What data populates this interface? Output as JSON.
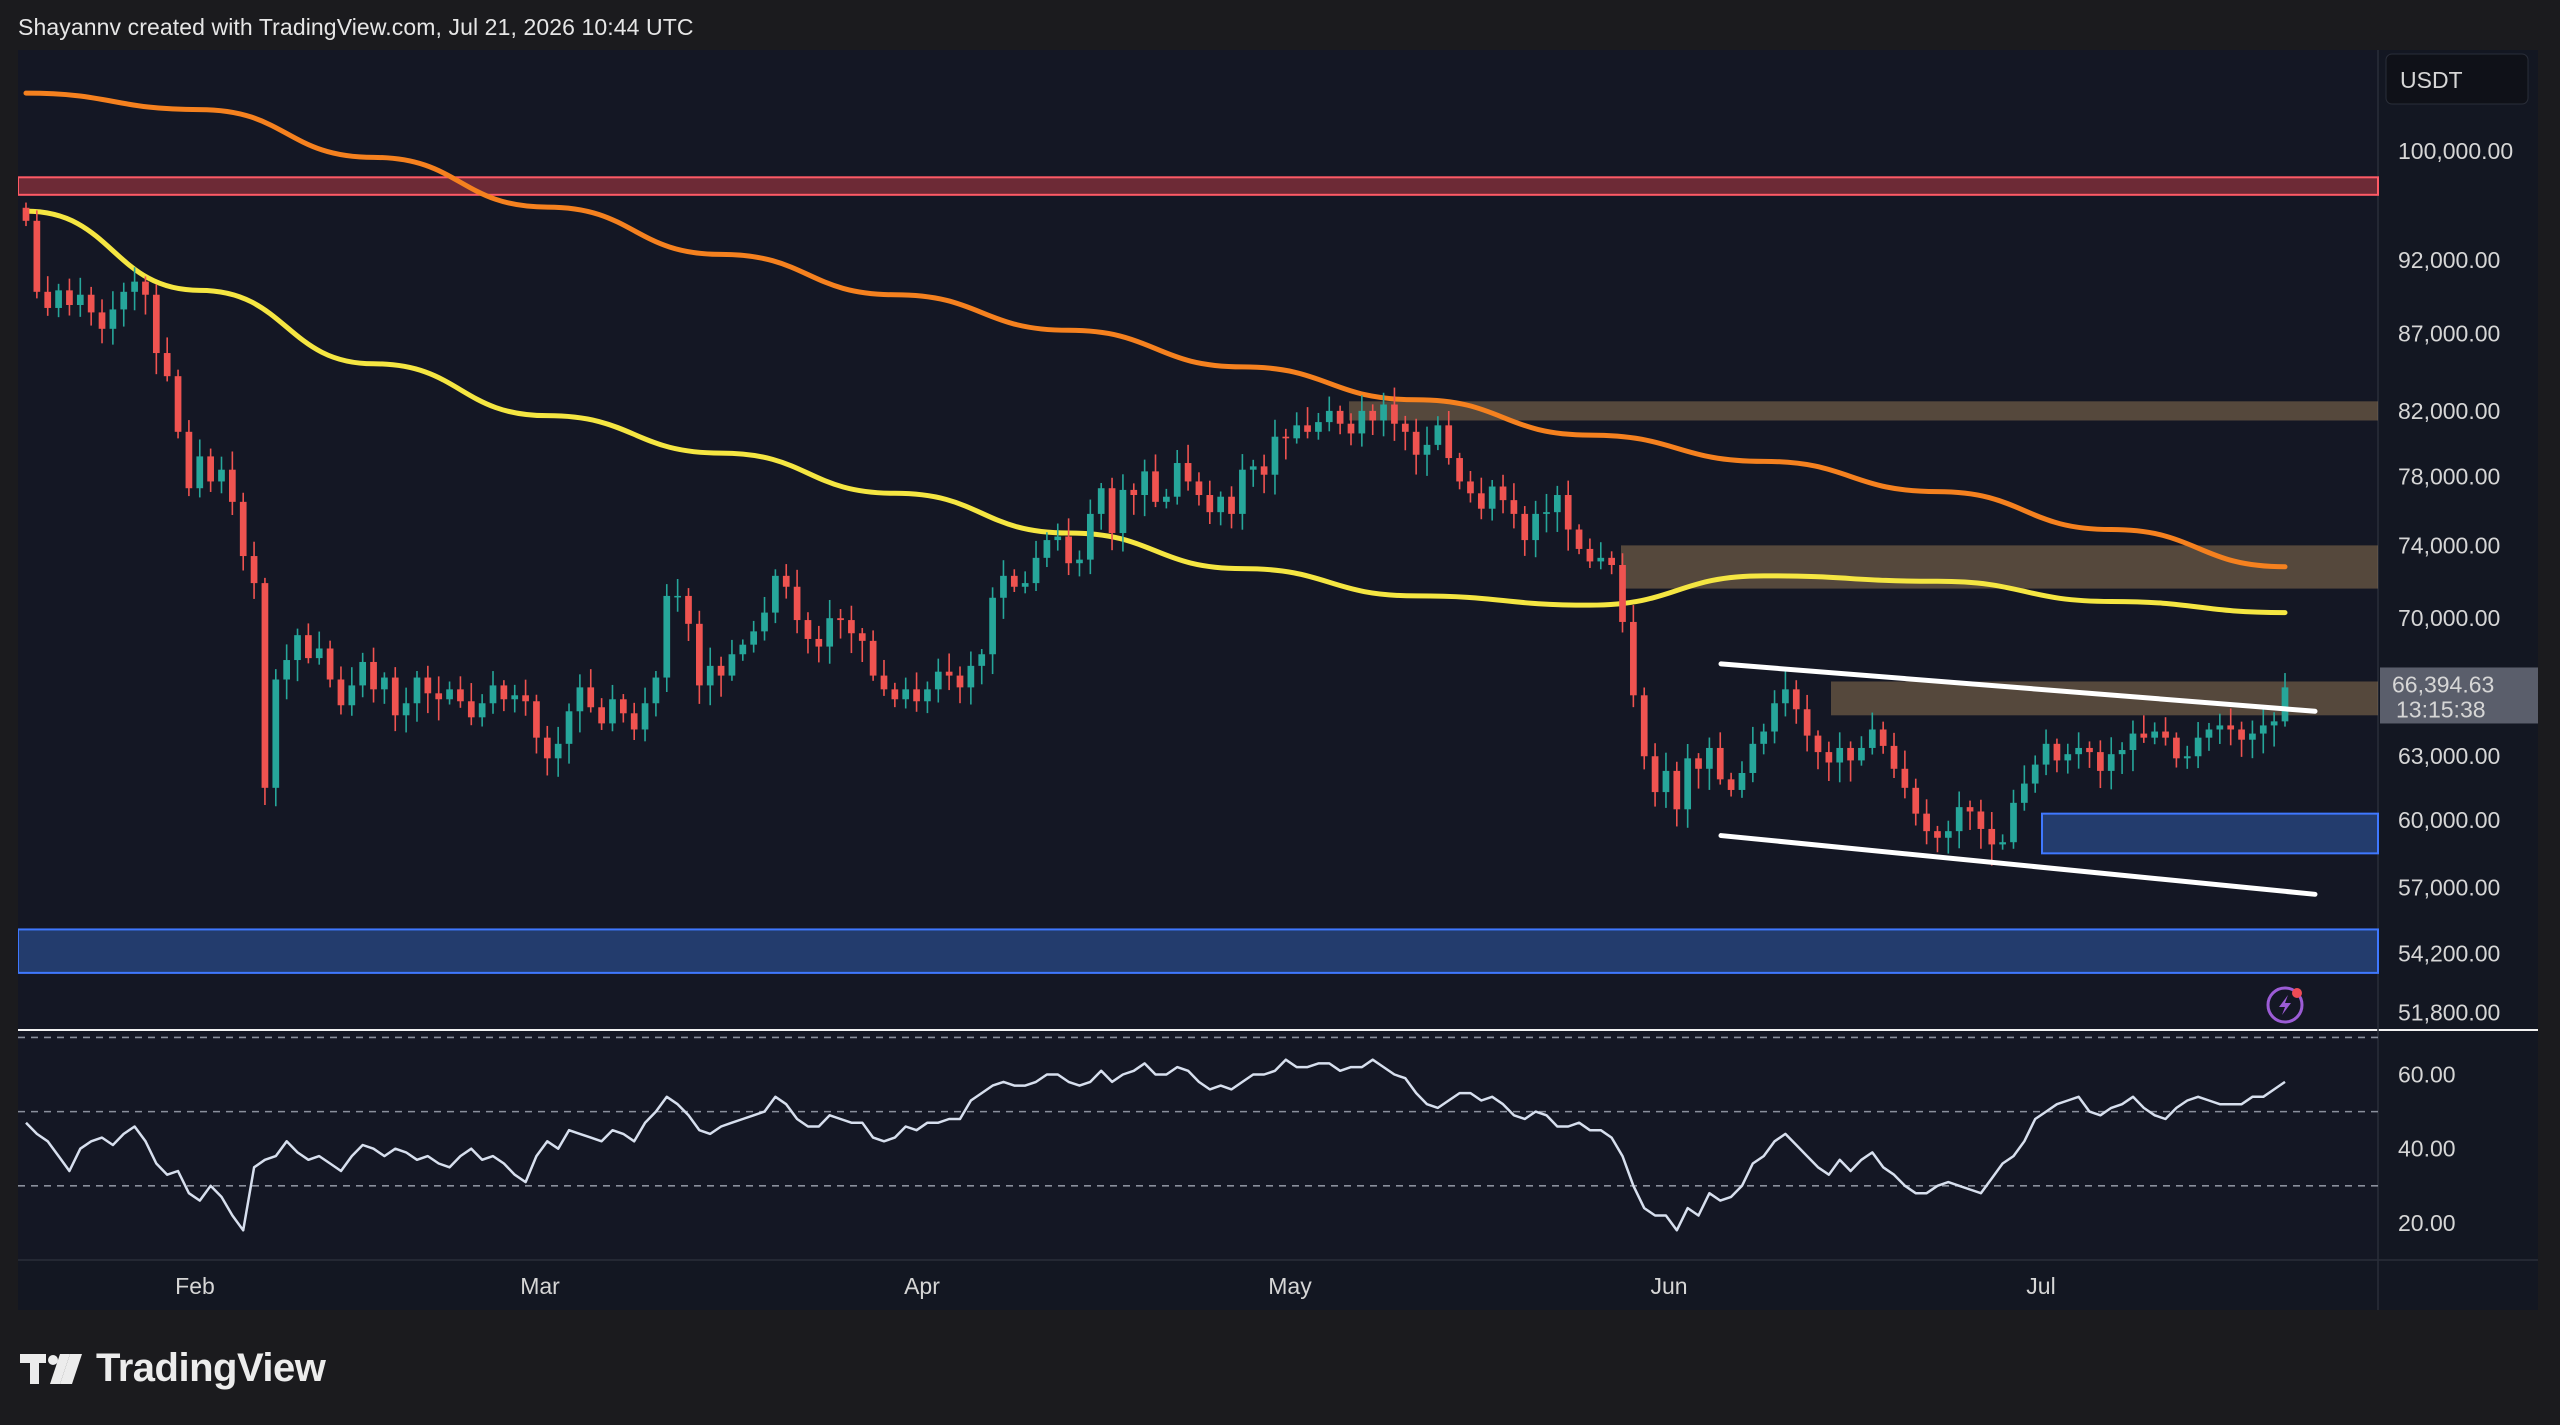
{
  "attribution": "Shayannv created with TradingView.com, Jul 21, 2026 10:44 UTC",
  "currency": "USDT",
  "logo_text": "TradingView",
  "colors": {
    "background": "#141724",
    "up_candle": "#26a69a",
    "down_candle": "#ef5350",
    "ma_orange": "#f5811f",
    "ma_yellow": "#f5e642",
    "rsi_line": "#d7dfee",
    "resistance_band": "#d9434d",
    "supply_zone": "#b08c5f",
    "demand_zone": "#3a6fd4",
    "price_label_bg": "#5a5e6b"
  },
  "icons": [
    "alert-bolt-icon",
    "tradingview-logo-icon"
  ],
  "chart_data": [
    {
      "type": "candlestick",
      "title": "",
      "xlabel": "",
      "ylabel": "",
      "x_ticks": [
        "Feb",
        "Mar",
        "Apr",
        "May",
        "Jun",
        "Jul"
      ],
      "y_scale": "log",
      "ylim": [
        51200,
        108000
      ],
      "y_ticks": [
        "100,000.00",
        "92,000.00",
        "87,000.00",
        "82,000.00",
        "78,000.00",
        "74,000.00",
        "70,000.00",
        "63,000.00",
        "60,000.00",
        "57,000.00",
        "54,200.00",
        "51,800.00"
      ],
      "grid": false,
      "last_price": {
        "value": "66,394.63",
        "countdown": "13:15:38"
      },
      "close_series": [
        94800,
        89800,
        88700,
        89900,
        88900,
        89600,
        88400,
        87300,
        88600,
        89800,
        90500,
        89600,
        85700,
        84200,
        80700,
        77300,
        79200,
        77700,
        78400,
        76500,
        73400,
        71900,
        61500,
        66800,
        67800,
        69100,
        67900,
        68400,
        66800,
        65500,
        66500,
        67700,
        66300,
        66900,
        65000,
        65600,
        66900,
        66100,
        65800,
        66300,
        65700,
        64900,
        65600,
        66500,
        65800,
        66000,
        65700,
        63900,
        62900,
        63600,
        65200,
        66400,
        65400,
        64600,
        65800,
        65100,
        64300,
        65600,
        66900,
        71200,
        71200,
        69700,
        66500,
        67500,
        67000,
        68100,
        68600,
        69300,
        70300,
        72300,
        71700,
        69900,
        68900,
        68500,
        70000,
        69900,
        69200,
        68800,
        67000,
        66300,
        65800,
        66300,
        65700,
        66300,
        67200,
        67000,
        66400,
        67500,
        68100,
        71100,
        72300,
        71700,
        71900,
        73300,
        74300,
        74500,
        73000,
        73200,
        75800,
        77300,
        74700,
        77200,
        76900,
        78300,
        76500,
        76800,
        78800,
        77700,
        76900,
        75900,
        76800,
        75800,
        78400,
        78600,
        78100,
        80400,
        80300,
        81100,
        80700,
        81300,
        82000,
        81200,
        80600,
        82000,
        81400,
        82400,
        81200,
        80700,
        79300,
        79900,
        81100,
        79100,
        77700,
        77000,
        76100,
        77400,
        76600,
        75800,
        74300,
        75800,
        75900,
        76900,
        74900,
        73800,
        73100,
        73300,
        72900,
        69800,
        66000,
        63000,
        61300,
        62300,
        60500,
        62900,
        62400,
        63400,
        61900,
        61400,
        62200,
        63600,
        64200,
        65600,
        66300,
        65300,
        64000,
        63200,
        62700,
        63400,
        62800,
        63400,
        64300,
        63500,
        62400,
        61500,
        60300,
        59500,
        59200,
        59500,
        60600,
        60400,
        59600,
        58900,
        59000,
        60800,
        61700,
        62600,
        63600,
        62800,
        63100,
        63400,
        63200,
        62300,
        63100,
        63300,
        64100,
        63900,
        64200,
        63900,
        62900,
        63000,
        63900,
        64300,
        64500,
        64300,
        63800,
        64100,
        64500,
        64700,
        66400
      ],
      "series": [
        {
          "name": "",
          "type": "line",
          "values_start_end": [
            104500,
            72800
          ],
          "values": [
            104500,
            103200,
            99500,
            95800,
            92400,
            89600,
            87200,
            84800,
            82700,
            80500,
            78900,
            77100,
            74900,
            72800
          ]
        },
        {
          "name": "",
          "type": "line",
          "values_start_end": [
            95500,
            70300
          ],
          "values": [
            95500,
            89900,
            85000,
            81700,
            79400,
            77000,
            74700,
            72700,
            71200,
            70700,
            72300,
            72000,
            70900,
            70300
          ]
        }
      ],
      "zones": [
        {
          "label": "resistance",
          "from": 96700,
          "to": 98000
        },
        {
          "label": "supply",
          "from": 81400,
          "to": 82600
        },
        {
          "label": "supply",
          "from": 71600,
          "to": 74000
        },
        {
          "label": "supply",
          "from": 65000,
          "to": 66700
        },
        {
          "label": "demand",
          "from": 58500,
          "to": 60300
        },
        {
          "label": "demand",
          "from": 53400,
          "to": 55200
        }
      ],
      "channel": {
        "upper": [
          67600,
          65200
        ],
        "lower": [
          59300,
          56700
        ]
      }
    },
    {
      "type": "line",
      "title": "",
      "xlabel": "",
      "ylabel": "",
      "ylim": [
        10,
        72
      ],
      "y_ticks": [
        "60.00",
        "40.00",
        "20.00"
      ],
      "guide_levels": [
        70,
        50,
        30
      ],
      "series": [
        {
          "name": "",
          "values": [
            47,
            44,
            42,
            38,
            34,
            40,
            42,
            43,
            41,
            44,
            46,
            42,
            36,
            33,
            34,
            28,
            26,
            30,
            27,
            22,
            18,
            35,
            37,
            38,
            42,
            39,
            37,
            38,
            36,
            34,
            38,
            41,
            40,
            38,
            40,
            39,
            37,
            38,
            36,
            35,
            38,
            40,
            37,
            38,
            36,
            33,
            31,
            38,
            42,
            40,
            45,
            44,
            43,
            42,
            45,
            44,
            42,
            47,
            50,
            54,
            52,
            49,
            45,
            44,
            46,
            47,
            48,
            49,
            50,
            54,
            52,
            48,
            46,
            46,
            49,
            48,
            47,
            47,
            43,
            42,
            43,
            46,
            45,
            47,
            47,
            48,
            48,
            53,
            55,
            57,
            58,
            57,
            57,
            58,
            60,
            60,
            58,
            57,
            58,
            61,
            58,
            60,
            61,
            63,
            60,
            60,
            62,
            61,
            58,
            56,
            57,
            56,
            58,
            60,
            60,
            61,
            64,
            62,
            62,
            63,
            63,
            61,
            62,
            62,
            64,
            62,
            60,
            59,
            55,
            52,
            51,
            53,
            55,
            55,
            53,
            54,
            52,
            49,
            48,
            50,
            49,
            46,
            46,
            47,
            45,
            45,
            43,
            38,
            30,
            24,
            22,
            22,
            18,
            24,
            22,
            28,
            26,
            27,
            30,
            36,
            38,
            42,
            44,
            41,
            38,
            35,
            33,
            37,
            34,
            37,
            39,
            35,
            33,
            30,
            28,
            28,
            30,
            31,
            30,
            29,
            28,
            32,
            36,
            38,
            42,
            48,
            50,
            52,
            53,
            54,
            50,
            49,
            51,
            52,
            54,
            51,
            49,
            48,
            51,
            53,
            54,
            53,
            52,
            52,
            52,
            54,
            54,
            56,
            58
          ]
        }
      ]
    }
  ]
}
